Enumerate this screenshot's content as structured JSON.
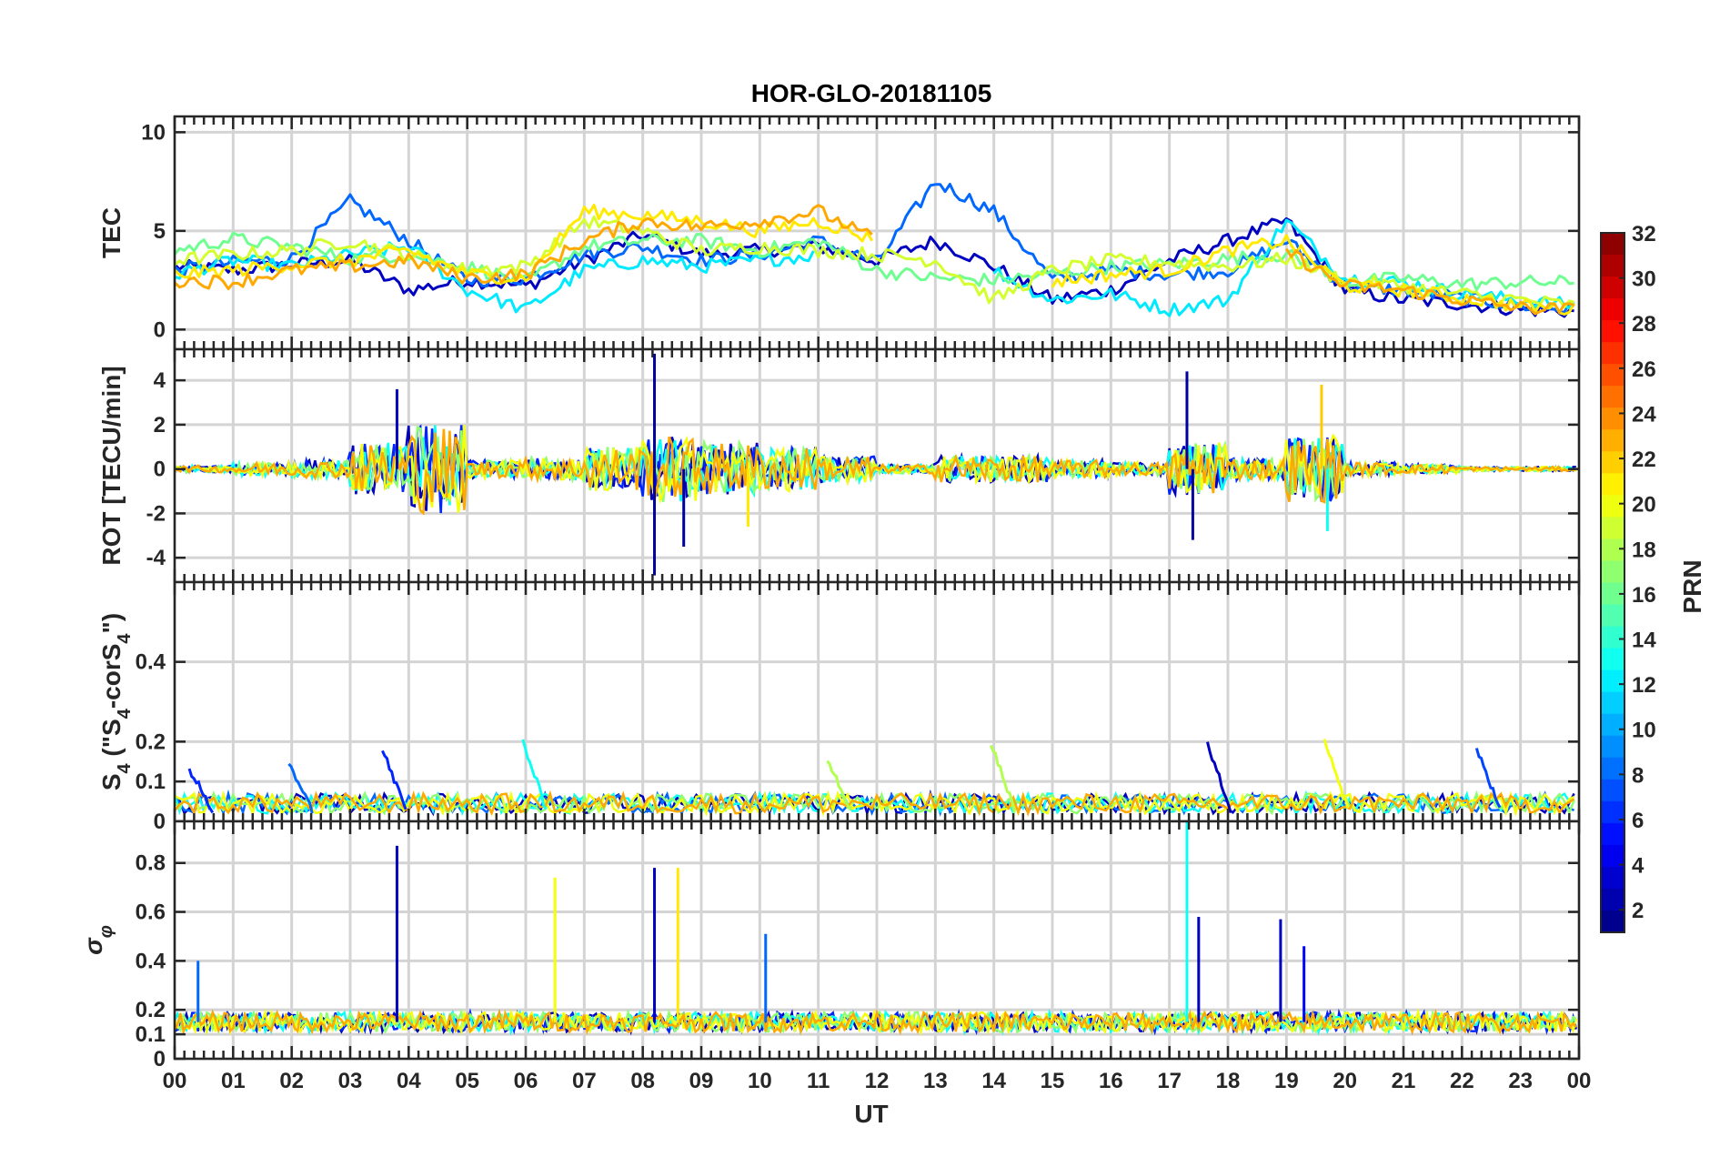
{
  "chart_data": {
    "type": "line",
    "title": "HOR-GLO-20181105",
    "xlabel": "UT",
    "x_tick_labels": [
      "00",
      "01",
      "02",
      "03",
      "04",
      "05",
      "06",
      "07",
      "08",
      "09",
      "10",
      "11",
      "12",
      "13",
      "14",
      "15",
      "16",
      "17",
      "18",
      "19",
      "20",
      "21",
      "22",
      "23",
      "00"
    ],
    "colorbar": {
      "label": "PRN",
      "range": [
        1,
        32
      ],
      "tick_labels": [
        "2",
        "4",
        "6",
        "8",
        "10",
        "12",
        "14",
        "16",
        "18",
        "20",
        "22",
        "24",
        "26",
        "28",
        "30",
        "32"
      ]
    },
    "panels": [
      {
        "name": "TEC",
        "ylabel": "TEC",
        "ylim": [
          -1,
          10.8
        ],
        "ytick_values": [
          0,
          5,
          10
        ],
        "ytick_labels": [
          "0",
          "5",
          "10"
        ],
        "series": [
          {
            "prn": 3,
            "values_by_hour": [
              3.2,
              3.0,
              3.3,
              3.5,
              2.0,
              2.5,
              2.2,
              3.5,
              4.8,
              3.8,
              4.0,
              4.2,
              3.5,
              4.5,
              3.2,
              1.5,
              2.0,
              3.5,
              4.5,
              5.5,
              2.0,
              1.5,
              1.3,
              1.0,
              0.9
            ]
          },
          {
            "prn": 8,
            "values_by_hour": [
              3.0,
              3.4,
              3.6,
              6.5,
              4.5,
              2.5,
              2.6,
              3.8,
              4.2,
              3.5,
              3.8,
              4.5,
              3.4,
              7.5,
              6.0,
              2.5,
              3.0,
              2.8,
              3.0,
              4.5,
              2.2,
              2.0,
              1.6,
              1.2,
              1.0
            ]
          },
          {
            "prn": 12,
            "values_by_hour": [
              2.8,
              3.5,
              3.2,
              3.8,
              4.2,
              2.0,
              1.0,
              3.0,
              3.5,
              3.2,
              3.5,
              3.8,
              null,
              null,
              3.0,
              1.5,
              1.8,
              1.0,
              1.5,
              5.5,
              2.6,
              2.4,
              1.8,
              1.5,
              1.2
            ]
          },
          {
            "prn": 16,
            "values_by_hour": [
              4.0,
              4.6,
              4.2,
              3.6,
              3.8,
              3.2,
              2.4,
              4.2,
              4.5,
              4.5,
              4.0,
              4.5,
              3.0,
              2.6,
              2.5,
              2.8,
              3.2,
              3.3,
              3.6,
              3.8,
              2.4,
              2.6,
              2.3,
              2.4,
              2.4
            ]
          },
          {
            "prn": 19,
            "values_by_hour": [
              3.5,
              3.8,
              4.0,
              4.5,
              3.8,
              3.0,
              3.2,
              5.5,
              5.0,
              4.0,
              4.2,
              4.0,
              3.8,
              3.5,
              1.5,
              3.0,
              3.5,
              3.4,
              3.2,
              3.6,
              2.5,
              2.2,
              1.8,
              1.5,
              1.2
            ]
          },
          {
            "prn": 21,
            "values_by_hour": [
              2.8,
              3.0,
              3.3,
              3.5,
              4.0,
              2.8,
              2.6,
              6.0,
              5.8,
              5.5,
              5.0,
              5.5,
              4.5,
              null,
              null,
              2.4,
              2.8,
              3.0,
              4.0,
              4.5,
              2.2,
              2.0,
              1.6,
              1.2,
              1.0
            ]
          },
          {
            "prn": 23,
            "values_by_hour": [
              2.5,
              2.4,
              3.0,
              3.2,
              3.5,
              2.6,
              2.8,
              4.5,
              5.5,
              5.2,
              5.5,
              6.0,
              4.5,
              null,
              null,
              null,
              null,
              null,
              null,
              4.0,
              2.2,
              2.0,
              1.5,
              1.1,
              1.0
            ]
          }
        ]
      },
      {
        "name": "ROT",
        "ylabel": "ROT [TECU/min]",
        "ylim": [
          -5.1,
          5.4
        ],
        "ytick_values": [
          -4,
          -2,
          0,
          2,
          4
        ],
        "ytick_labels": [
          "-4",
          "-2",
          "0",
          "2",
          "4"
        ],
        "hourly_amplitude": [
          0.15,
          0.3,
          0.4,
          1.2,
          2.0,
          0.4,
          0.5,
          1.0,
          1.5,
          1.2,
          1.0,
          0.6,
          0.2,
          0.6,
          0.6,
          0.4,
          0.3,
          1.2,
          0.5,
          1.5,
          0.3,
          0.2,
          0.1,
          0.1,
          0.1
        ],
        "peaks": [
          {
            "hour": 8.2,
            "value": 5.2,
            "prn": 2
          },
          {
            "hour": 8.2,
            "value": -4.8,
            "prn": 2
          },
          {
            "hour": 3.8,
            "value": 3.6,
            "prn": 3
          },
          {
            "hour": 17.3,
            "value": 4.4,
            "prn": 2
          },
          {
            "hour": 17.4,
            "value": -3.2,
            "prn": 2
          },
          {
            "hour": 19.6,
            "value": 3.8,
            "prn": 22
          },
          {
            "hour": 19.7,
            "value": -2.8,
            "prn": 13
          },
          {
            "hour": 8.7,
            "value": -3.5,
            "prn": 2
          },
          {
            "hour": 9.8,
            "value": -2.6,
            "prn": 21
          }
        ]
      },
      {
        "name": "S4",
        "ylabel": "S4 (\"S4-corS4\")",
        "ylim": [
          0,
          0.6
        ],
        "ytick_values": [
          0,
          0.1,
          0.2,
          0.4
        ],
        "ytick_labels": [
          "0",
          "0.1",
          "0.2",
          "0.4"
        ],
        "peaks": [
          {
            "hour": 3.7,
            "value": 0.18,
            "prn": 6
          },
          {
            "hour": 6.1,
            "value": 0.2,
            "prn": 13
          },
          {
            "hour": 14.1,
            "value": 0.2,
            "prn": 18
          },
          {
            "hour": 17.8,
            "value": 0.19,
            "prn": 3
          },
          {
            "hour": 19.8,
            "value": 0.21,
            "prn": 20
          },
          {
            "hour": 22.4,
            "value": 0.18,
            "prn": 7
          },
          {
            "hour": 2.1,
            "value": 0.15,
            "prn": 8
          },
          {
            "hour": 0.4,
            "value": 0.13,
            "prn": 6
          },
          {
            "hour": 11.3,
            "value": 0.16,
            "prn": 18
          }
        ]
      },
      {
        "name": "sigma_phi",
        "ylabel": "σφ",
        "ylim": [
          0,
          0.97
        ],
        "ytick_values": [
          0,
          0.1,
          0.2,
          0.4,
          0.6,
          0.8
        ],
        "ytick_labels": [
          "0",
          "0.1",
          "0.2",
          "0.4",
          "0.6",
          "0.8"
        ],
        "baseline": 0.15,
        "peaks": [
          {
            "hour": 3.8,
            "value": 0.87,
            "prn": 3
          },
          {
            "hour": 6.5,
            "value": 0.74,
            "prn": 20
          },
          {
            "hour": 8.2,
            "value": 0.78,
            "prn": 3
          },
          {
            "hour": 8.6,
            "value": 0.78,
            "prn": 21
          },
          {
            "hour": 10.1,
            "value": 0.51,
            "prn": 8
          },
          {
            "hour": 17.3,
            "value": 0.97,
            "prn": 13
          },
          {
            "hour": 17.5,
            "value": 0.58,
            "prn": 3
          },
          {
            "hour": 18.9,
            "value": 0.57,
            "prn": 3
          },
          {
            "hour": 19.3,
            "value": 0.46,
            "prn": 5
          },
          {
            "hour": 0.4,
            "value": 0.4,
            "prn": 8
          }
        ]
      }
    ]
  }
}
